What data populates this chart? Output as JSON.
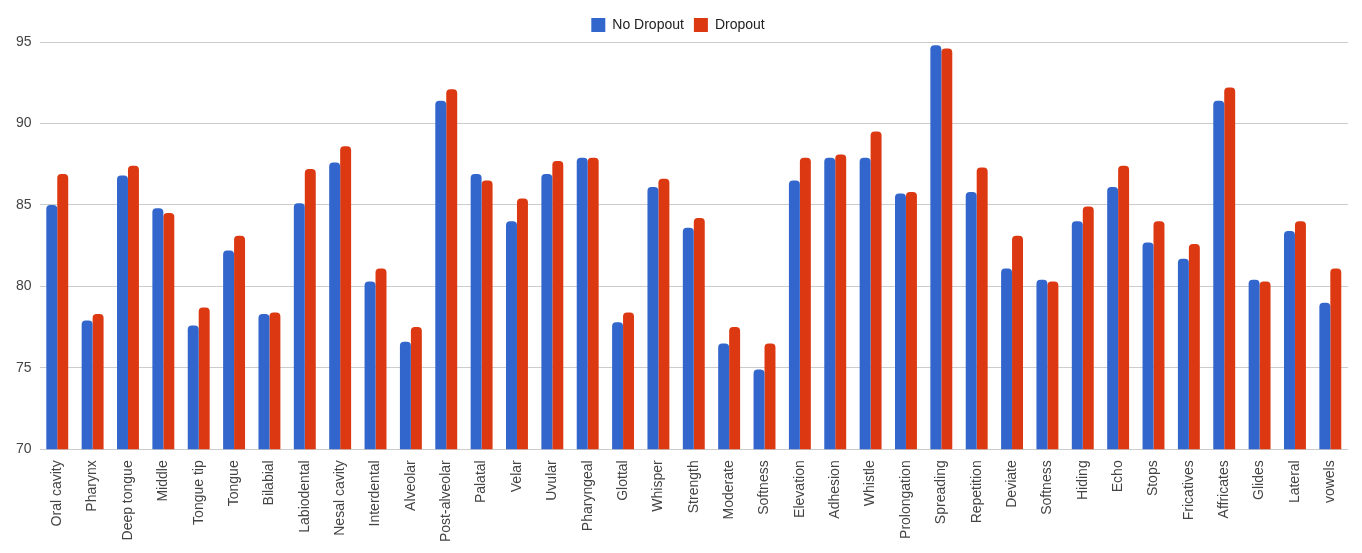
{
  "chart_data": {
    "type": "bar",
    "categories": [
      "Oral cavity",
      "Pharynx",
      "Deep tongue",
      "Middle",
      "Tongue tip",
      "Tongue",
      "Bilabial",
      "Labiodental",
      "Nesal cavity",
      "Interdental",
      "Alveolar",
      "Post-alveolar",
      "Palatal",
      "Velar",
      "Uvular",
      "Pharyngeal",
      "Glottal",
      "Whisper",
      "Strength",
      "Moderate",
      "Softness",
      "Elevation",
      "Adhesion",
      "Whistle",
      "Prolongation",
      "Spreading",
      "Repetition",
      "Deviate",
      "Softness",
      "Hiding",
      "Echo",
      "Stops",
      "Fricatives",
      "Affricates",
      "Glides",
      "Lateral",
      "vowels"
    ],
    "series": [
      {
        "name": "No Dropout",
        "color": "#3366cc",
        "values": [
          85.0,
          77.9,
          86.8,
          84.8,
          77.6,
          82.2,
          78.3,
          85.1,
          87.6,
          80.3,
          76.6,
          91.4,
          86.9,
          84.0,
          86.9,
          87.9,
          77.8,
          86.1,
          83.6,
          76.5,
          74.9,
          86.5,
          87.9,
          87.9,
          85.7,
          94.8,
          85.8,
          81.1,
          80.4,
          84.0,
          86.1,
          82.7,
          81.7,
          91.4,
          80.4,
          83.4,
          79.0
        ]
      },
      {
        "name": "Dropout",
        "color": "#dc3912",
        "values": [
          86.9,
          78.3,
          87.4,
          84.5,
          78.7,
          83.1,
          78.4,
          87.2,
          88.6,
          81.1,
          77.5,
          92.1,
          86.5,
          85.4,
          87.7,
          87.9,
          78.4,
          86.6,
          84.2,
          77.5,
          76.5,
          87.9,
          88.1,
          89.5,
          85.8,
          94.6,
          87.3,
          83.1,
          80.3,
          84.9,
          87.4,
          84.0,
          82.6,
          92.2,
          80.3,
          84.0,
          81.1
        ]
      }
    ],
    "ylim": [
      70,
      95
    ],
    "yticks": [
      70,
      75,
      80,
      85,
      90,
      95
    ],
    "grid": "y",
    "legend": "top"
  }
}
